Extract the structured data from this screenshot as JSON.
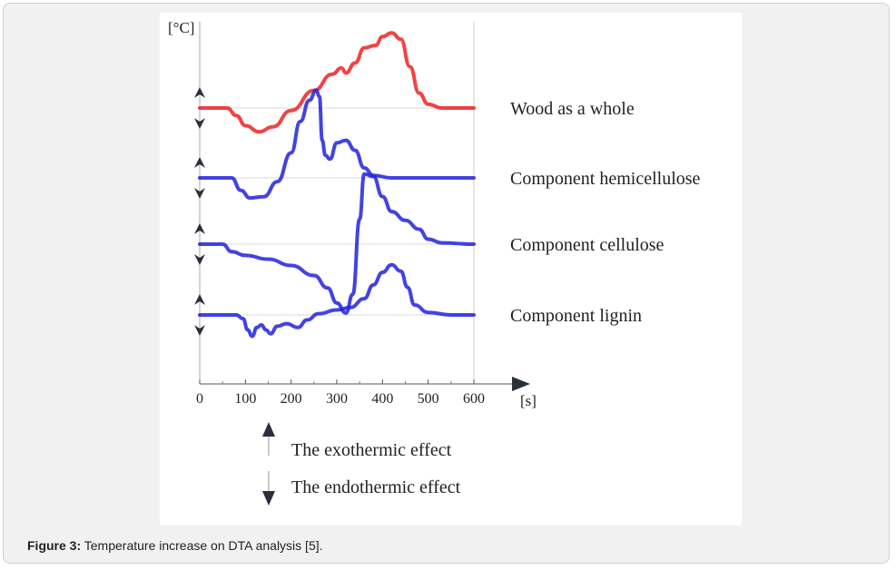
{
  "caption": {
    "label": "Figure 3:",
    "text": " Temperature increase on DTA analysis [5]."
  },
  "colors": {
    "wood": "#ee2222",
    "component": "#2222dd",
    "axis": "#888888",
    "grid": "#cccccc",
    "arrow": "#2a2f3a"
  },
  "chart_data": {
    "type": "line",
    "y_unit_label": "[°C]",
    "x_unit_label": "[s]",
    "x_ticks": [
      "0",
      "100",
      "200",
      "300",
      "400",
      "500",
      "600"
    ],
    "xlim": [
      0,
      600
    ],
    "legend_position": "right",
    "series": [
      {
        "name": "Wood as a whole",
        "color_key": "wood",
        "points": [
          [
            0,
            0
          ],
          [
            60,
            0
          ],
          [
            80,
            -6
          ],
          [
            100,
            -14
          ],
          [
            130,
            -19
          ],
          [
            160,
            -15
          ],
          [
            200,
            -2
          ],
          [
            250,
            14
          ],
          [
            290,
            27
          ],
          [
            310,
            32
          ],
          [
            320,
            28
          ],
          [
            340,
            36
          ],
          [
            360,
            48
          ],
          [
            385,
            50
          ],
          [
            400,
            57
          ],
          [
            420,
            60
          ],
          [
            440,
            55
          ],
          [
            460,
            33
          ],
          [
            480,
            12
          ],
          [
            500,
            3
          ],
          [
            530,
            0
          ],
          [
            600,
            0
          ]
        ]
      },
      {
        "name": "Component hemicellulose",
        "color_key": "component",
        "points": [
          [
            0,
            0
          ],
          [
            70,
            0
          ],
          [
            90,
            -10
          ],
          [
            110,
            -16
          ],
          [
            140,
            -15
          ],
          [
            170,
            -3
          ],
          [
            200,
            20
          ],
          [
            220,
            45
          ],
          [
            240,
            62
          ],
          [
            255,
            70
          ],
          [
            262,
            65
          ],
          [
            268,
            30
          ],
          [
            275,
            18
          ],
          [
            285,
            15
          ],
          [
            300,
            28
          ],
          [
            320,
            30
          ],
          [
            340,
            22
          ],
          [
            360,
            8
          ],
          [
            380,
            2
          ],
          [
            420,
            0
          ],
          [
            600,
            0
          ]
        ]
      },
      {
        "name": "Component cellulose",
        "color_key": "component",
        "points": [
          [
            0,
            0
          ],
          [
            50,
            0
          ],
          [
            70,
            -6
          ],
          [
            100,
            -9
          ],
          [
            150,
            -12
          ],
          [
            200,
            -17
          ],
          [
            250,
            -25
          ],
          [
            280,
            -35
          ],
          [
            300,
            -47
          ],
          [
            320,
            -55
          ],
          [
            335,
            -40
          ],
          [
            350,
            20
          ],
          [
            360,
            56
          ],
          [
            380,
            54
          ],
          [
            400,
            38
          ],
          [
            420,
            26
          ],
          [
            450,
            19
          ],
          [
            480,
            12
          ],
          [
            500,
            4
          ],
          [
            530,
            1
          ],
          [
            600,
            0
          ]
        ]
      },
      {
        "name": "Component lignin",
        "color_key": "component",
        "points": [
          [
            0,
            0
          ],
          [
            80,
            0
          ],
          [
            95,
            -3
          ],
          [
            105,
            -12
          ],
          [
            115,
            -17
          ],
          [
            125,
            -10
          ],
          [
            135,
            -8
          ],
          [
            145,
            -12
          ],
          [
            155,
            -15
          ],
          [
            170,
            -9
          ],
          [
            190,
            -7
          ],
          [
            215,
            -10
          ],
          [
            235,
            -4
          ],
          [
            260,
            1
          ],
          [
            300,
            4
          ],
          [
            330,
            6
          ],
          [
            360,
            13
          ],
          [
            380,
            24
          ],
          [
            400,
            34
          ],
          [
            420,
            40
          ],
          [
            440,
            35
          ],
          [
            455,
            22
          ],
          [
            470,
            8
          ],
          [
            500,
            2
          ],
          [
            550,
            0
          ],
          [
            600,
            0
          ]
        ]
      }
    ],
    "effect_legend": [
      {
        "direction": "up",
        "text": "The exothermic effect"
      },
      {
        "direction": "down",
        "text": "The endothermic effect"
      }
    ]
  }
}
